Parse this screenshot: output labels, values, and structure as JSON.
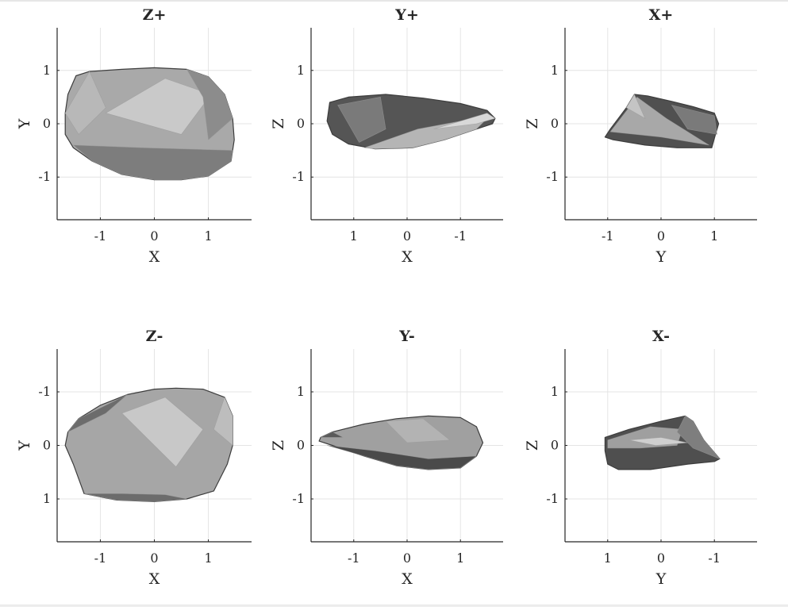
{
  "chart_data": [
    {
      "type": "shape-projection",
      "title": "Z+",
      "xlabel": "X",
      "ylabel": "Y",
      "xlim": [
        -1.8,
        1.8
      ],
      "ylim": [
        -1.8,
        1.8
      ],
      "x_reversed": false,
      "y_reversed": false,
      "xticks": [
        -1,
        0,
        1
      ],
      "xtick_labels": [
        "-1",
        "0",
        "1"
      ],
      "yticks": [
        -1,
        0,
        1
      ],
      "ytick_labels": [
        "-1",
        "0",
        "1"
      ],
      "grid": true,
      "fill": "#a9a9a9",
      "outline": [
        [
          -1.45,
          0.9
        ],
        [
          -1.2,
          0.98
        ],
        [
          -0.6,
          1.02
        ],
        [
          0.0,
          1.05
        ],
        [
          0.6,
          1.02
        ],
        [
          1.0,
          0.88
        ],
        [
          1.3,
          0.55
        ],
        [
          1.45,
          0.1
        ],
        [
          1.48,
          -0.3
        ],
        [
          1.42,
          -0.7
        ],
        [
          1.0,
          -0.98
        ],
        [
          0.5,
          -1.05
        ],
        [
          0,
          -1.05
        ],
        [
          -0.6,
          -0.95
        ],
        [
          -1.15,
          -0.7
        ],
        [
          -1.5,
          -0.45
        ],
        [
          -1.65,
          -0.2
        ],
        [
          -1.65,
          0.2
        ],
        [
          -1.6,
          0.55
        ]
      ],
      "facets": [
        {
          "points": [
            [
              -0.9,
              0.2
            ],
            [
              0.2,
              0.85
            ],
            [
              1.05,
              0.55
            ],
            [
              0.5,
              -0.2
            ]
          ],
          "fill": "#c9c9c9"
        },
        {
          "points": [
            [
              -1.5,
              -0.4
            ],
            [
              -0.2,
              -0.45
            ],
            [
              1.45,
              -0.5
            ],
            [
              1.42,
              -0.7
            ],
            [
              1.0,
              -0.98
            ],
            [
              0.5,
              -1.05
            ],
            [
              0,
              -1.05
            ],
            [
              -0.6,
              -0.95
            ],
            [
              -1.15,
              -0.7
            ]
          ],
          "fill": "#7d7d7d"
        },
        {
          "points": [
            [
              0.6,
              1.02
            ],
            [
              1.0,
              0.88
            ],
            [
              1.3,
              0.55
            ],
            [
              1.45,
              0.1
            ],
            [
              1.0,
              -0.3
            ],
            [
              0.9,
              0.5
            ]
          ],
          "fill": "#8c8c8c"
        },
        {
          "points": [
            [
              -1.65,
              0.2
            ],
            [
              -1.2,
              0.98
            ],
            [
              -0.9,
              0.3
            ],
            [
              -1.4,
              -0.2
            ]
          ],
          "fill": "#b8b8b8"
        }
      ]
    },
    {
      "type": "shape-projection",
      "title": "Y+",
      "xlabel": "X",
      "ylabel": "Z",
      "xlim": [
        -1.8,
        1.8
      ],
      "ylim": [
        -1.8,
        1.8
      ],
      "x_reversed": true,
      "y_reversed": false,
      "xticks": [
        1,
        0,
        -1
      ],
      "xtick_labels": [
        "1",
        "0",
        "-1"
      ],
      "yticks": [
        -1,
        0,
        1
      ],
      "ytick_labels": [
        "-1",
        "0",
        "1"
      ],
      "grid": true,
      "fill": "#555555",
      "outline": [
        [
          1.45,
          0.4
        ],
        [
          1.1,
          0.5
        ],
        [
          0.4,
          0.55
        ],
        [
          -0.3,
          0.48
        ],
        [
          -1.0,
          0.38
        ],
        [
          -1.5,
          0.25
        ],
        [
          -1.65,
          0.1
        ],
        [
          -1.6,
          0.0
        ],
        [
          -1.3,
          -0.1
        ],
        [
          -0.7,
          -0.3
        ],
        [
          -0.1,
          -0.45
        ],
        [
          0.6,
          -0.47
        ],
        [
          1.1,
          -0.38
        ],
        [
          1.4,
          -0.2
        ],
        [
          1.5,
          0.05
        ]
      ],
      "facets": [
        {
          "points": [
            [
              0.8,
              -0.45
            ],
            [
              -0.2,
              -0.1
            ],
            [
              -1.55,
              0.15
            ],
            [
              -1.3,
              -0.1
            ],
            [
              -0.7,
              -0.3
            ],
            [
              -0.1,
              -0.45
            ],
            [
              0.6,
              -0.47
            ]
          ],
          "fill": "#b5b5b5"
        },
        {
          "points": [
            [
              1.3,
              0.35
            ],
            [
              0.5,
              0.5
            ],
            [
              0.4,
              -0.1
            ],
            [
              0.9,
              -0.35
            ]
          ],
          "fill": "#7a7a7a"
        },
        {
          "points": [
            [
              -0.5,
              -0.1
            ],
            [
              -1.5,
              0.2
            ],
            [
              -1.65,
              0.1
            ],
            [
              -1.3,
              0.0
            ]
          ],
          "fill": "#d8d8d8"
        }
      ]
    },
    {
      "type": "shape-projection",
      "title": "X+",
      "xlabel": "Y",
      "ylabel": "Z",
      "xlim": [
        -1.8,
        1.8
      ],
      "ylim": [
        -1.8,
        1.8
      ],
      "x_reversed": false,
      "y_reversed": false,
      "xticks": [
        -1,
        0,
        1
      ],
      "xtick_labels": [
        "-1",
        "0",
        "1"
      ],
      "yticks": [
        -1,
        0,
        1
      ],
      "ytick_labels": [
        "-1",
        "0",
        "1"
      ],
      "grid": true,
      "fill": "#505050",
      "outline": [
        [
          -0.5,
          0.55
        ],
        [
          -0.25,
          0.52
        ],
        [
          0.2,
          0.42
        ],
        [
          0.6,
          0.32
        ],
        [
          1.0,
          0.2
        ],
        [
          1.08,
          0.0
        ],
        [
          1.02,
          -0.2
        ],
        [
          0.95,
          -0.45
        ],
        [
          0.3,
          -0.45
        ],
        [
          -0.3,
          -0.4
        ],
        [
          -0.9,
          -0.3
        ],
        [
          -1.05,
          -0.25
        ],
        [
          -0.95,
          -0.1
        ],
        [
          -0.8,
          0.1
        ],
        [
          -0.65,
          0.3
        ]
      ],
      "facets": [
        {
          "points": [
            [
              -0.45,
              0.5
            ],
            [
              -0.95,
              -0.15
            ],
            [
              0.0,
              -0.25
            ],
            [
              0.9,
              -0.4
            ],
            [
              0.1,
              0.1
            ]
          ],
          "fill": "#a8a8a8"
        },
        {
          "points": [
            [
              -0.5,
              0.55
            ],
            [
              -0.65,
              0.3
            ],
            [
              -0.3,
              0.1
            ]
          ],
          "fill": "#c4c4c4"
        },
        {
          "points": [
            [
              0.2,
              0.35
            ],
            [
              1.0,
              0.15
            ],
            [
              1.05,
              -0.2
            ],
            [
              0.5,
              -0.1
            ]
          ],
          "fill": "#7a7a7a"
        }
      ]
    },
    {
      "type": "shape-projection",
      "title": "Z-",
      "xlabel": "X",
      "ylabel": "Y",
      "xlim": [
        -1.8,
        1.8
      ],
      "ylim": [
        -1.8,
        1.8
      ],
      "x_reversed": false,
      "y_reversed": true,
      "xticks": [
        -1,
        0,
        1
      ],
      "xtick_labels": [
        "-1",
        "0",
        "1"
      ],
      "yticks": [
        -1,
        0,
        1
      ],
      "ytick_labels": [
        "-1",
        "0",
        "1"
      ],
      "grid": true,
      "fill": "#a6a6a6",
      "outline": [
        [
          -1.5,
          0.35
        ],
        [
          -1.65,
          0.0
        ],
        [
          -1.6,
          -0.25
        ],
        [
          -1.4,
          -0.5
        ],
        [
          -1.0,
          -0.75
        ],
        [
          -0.5,
          -0.95
        ],
        [
          0.0,
          -1.05
        ],
        [
          0.4,
          -1.07
        ],
        [
          0.9,
          -1.05
        ],
        [
          1.3,
          -0.9
        ],
        [
          1.45,
          -0.55
        ],
        [
          1.45,
          0.0
        ],
        [
          1.35,
          0.35
        ],
        [
          1.1,
          0.85
        ],
        [
          0.6,
          1.0
        ],
        [
          0.0,
          1.05
        ],
        [
          -0.7,
          1.02
        ],
        [
          -1.3,
          0.9
        ]
      ],
      "facets": [
        {
          "points": [
            [
              -0.6,
              -0.6
            ],
            [
              0.2,
              -0.9
            ],
            [
              0.9,
              -0.3
            ],
            [
              0.4,
              0.4
            ],
            [
              -0.2,
              -0.2
            ]
          ],
          "fill": "#c8c8c8"
        },
        {
          "points": [
            [
              -1.6,
              -0.25
            ],
            [
              -1.4,
              -0.5
            ],
            [
              -0.5,
              -0.95
            ],
            [
              -0.9,
              -0.6
            ]
          ],
          "fill": "#6c6c6c"
        },
        {
          "points": [
            [
              1.3,
              -0.9
            ],
            [
              1.45,
              -0.55
            ],
            [
              1.45,
              0.0
            ],
            [
              1.1,
              -0.3
            ]
          ],
          "fill": "#bdbdbd"
        },
        {
          "points": [
            [
              -1.3,
              0.9
            ],
            [
              -0.7,
              1.02
            ],
            [
              0.0,
              1.05
            ],
            [
              0.6,
              1.0
            ],
            [
              0.2,
              0.92
            ],
            [
              -0.6,
              0.9
            ]
          ],
          "fill": "#6c6c6c"
        }
      ]
    },
    {
      "type": "shape-projection",
      "title": "Y-",
      "xlabel": "X",
      "ylabel": "Z",
      "xlim": [
        -1.8,
        1.8
      ],
      "ylim": [
        -1.8,
        1.8
      ],
      "x_reversed": false,
      "y_reversed": false,
      "xticks": [
        -1,
        0,
        1
      ],
      "xtick_labels": [
        "-1",
        "0",
        "1"
      ],
      "yticks": [
        -1,
        0,
        1
      ],
      "ytick_labels": [
        "-1",
        "0",
        "1"
      ],
      "grid": true,
      "fill": "#a0a0a0",
      "outline": [
        [
          -1.62,
          0.15
        ],
        [
          -1.4,
          0.25
        ],
        [
          -0.8,
          0.4
        ],
        [
          -0.2,
          0.5
        ],
        [
          0.4,
          0.55
        ],
        [
          1.0,
          0.52
        ],
        [
          1.3,
          0.35
        ],
        [
          1.42,
          0.05
        ],
        [
          1.3,
          -0.2
        ],
        [
          1.0,
          -0.42
        ],
        [
          0.4,
          -0.45
        ],
        [
          -0.2,
          -0.38
        ],
        [
          -0.8,
          -0.2
        ],
        [
          -1.4,
          0.0
        ],
        [
          -1.65,
          0.08
        ]
      ],
      "facets": [
        {
          "points": [
            [
              -1.5,
              0.0
            ],
            [
              -0.8,
              -0.2
            ],
            [
              -0.2,
              -0.38
            ],
            [
              0.4,
              -0.45
            ],
            [
              1.0,
              -0.42
            ],
            [
              1.3,
              -0.2
            ],
            [
              0.4,
              -0.25
            ],
            [
              -0.6,
              -0.1
            ]
          ],
          "fill": "#4a4a4a"
        },
        {
          "points": [
            [
              -0.4,
              0.45
            ],
            [
              0.3,
              0.5
            ],
            [
              0.8,
              0.1
            ],
            [
              0.0,
              0.05
            ]
          ],
          "fill": "#b3b3b3"
        },
        {
          "points": [
            [
              -1.62,
              0.15
            ],
            [
              -1.4,
              0.25
            ],
            [
              -1.2,
              0.15
            ]
          ],
          "fill": "#5a5a5a"
        }
      ]
    },
    {
      "type": "shape-projection",
      "title": "X-",
      "xlabel": "Y",
      "ylabel": "Z",
      "xlim": [
        -1.8,
        1.8
      ],
      "ylim": [
        -1.8,
        1.8
      ],
      "x_reversed": true,
      "y_reversed": false,
      "xticks": [
        1,
        0,
        -1
      ],
      "xtick_labels": [
        "1",
        "0",
        "-1"
      ],
      "yticks": [
        -1,
        0,
        1
      ],
      "ytick_labels": [
        "-1",
        "0",
        "1"
      ],
      "grid": true,
      "fill": "#4f4f4f",
      "outline": [
        [
          1.05,
          0.15
        ],
        [
          0.6,
          0.3
        ],
        [
          0.0,
          0.45
        ],
        [
          -0.45,
          0.55
        ],
        [
          -0.6,
          0.45
        ],
        [
          -0.8,
          0.1
        ],
        [
          -1.1,
          -0.25
        ],
        [
          -1.0,
          -0.3
        ],
        [
          -0.5,
          -0.35
        ],
        [
          0.2,
          -0.45
        ],
        [
          0.8,
          -0.45
        ],
        [
          1.0,
          -0.35
        ],
        [
          1.05,
          -0.1
        ]
      ],
      "facets": [
        {
          "points": [
            [
              1.0,
              0.1
            ],
            [
              0.2,
              0.35
            ],
            [
              -0.4,
              0.3
            ],
            [
              -0.3,
              0.0
            ],
            [
              0.4,
              -0.05
            ],
            [
              1.0,
              -0.05
            ]
          ],
          "fill": "#9f9f9f"
        },
        {
          "points": [
            [
              -0.45,
              0.55
            ],
            [
              -0.6,
              0.45
            ],
            [
              -0.8,
              0.1
            ],
            [
              -1.1,
              -0.25
            ],
            [
              -0.6,
              -0.05
            ],
            [
              -0.3,
              0.25
            ]
          ],
          "fill": "#7e7e7e"
        },
        {
          "points": [
            [
              0.6,
              0.1
            ],
            [
              0.0,
              0.15
            ],
            [
              -0.5,
              0.05
            ],
            [
              0.1,
              0.0
            ]
          ],
          "fill": "#cfcfcf"
        }
      ]
    }
  ]
}
